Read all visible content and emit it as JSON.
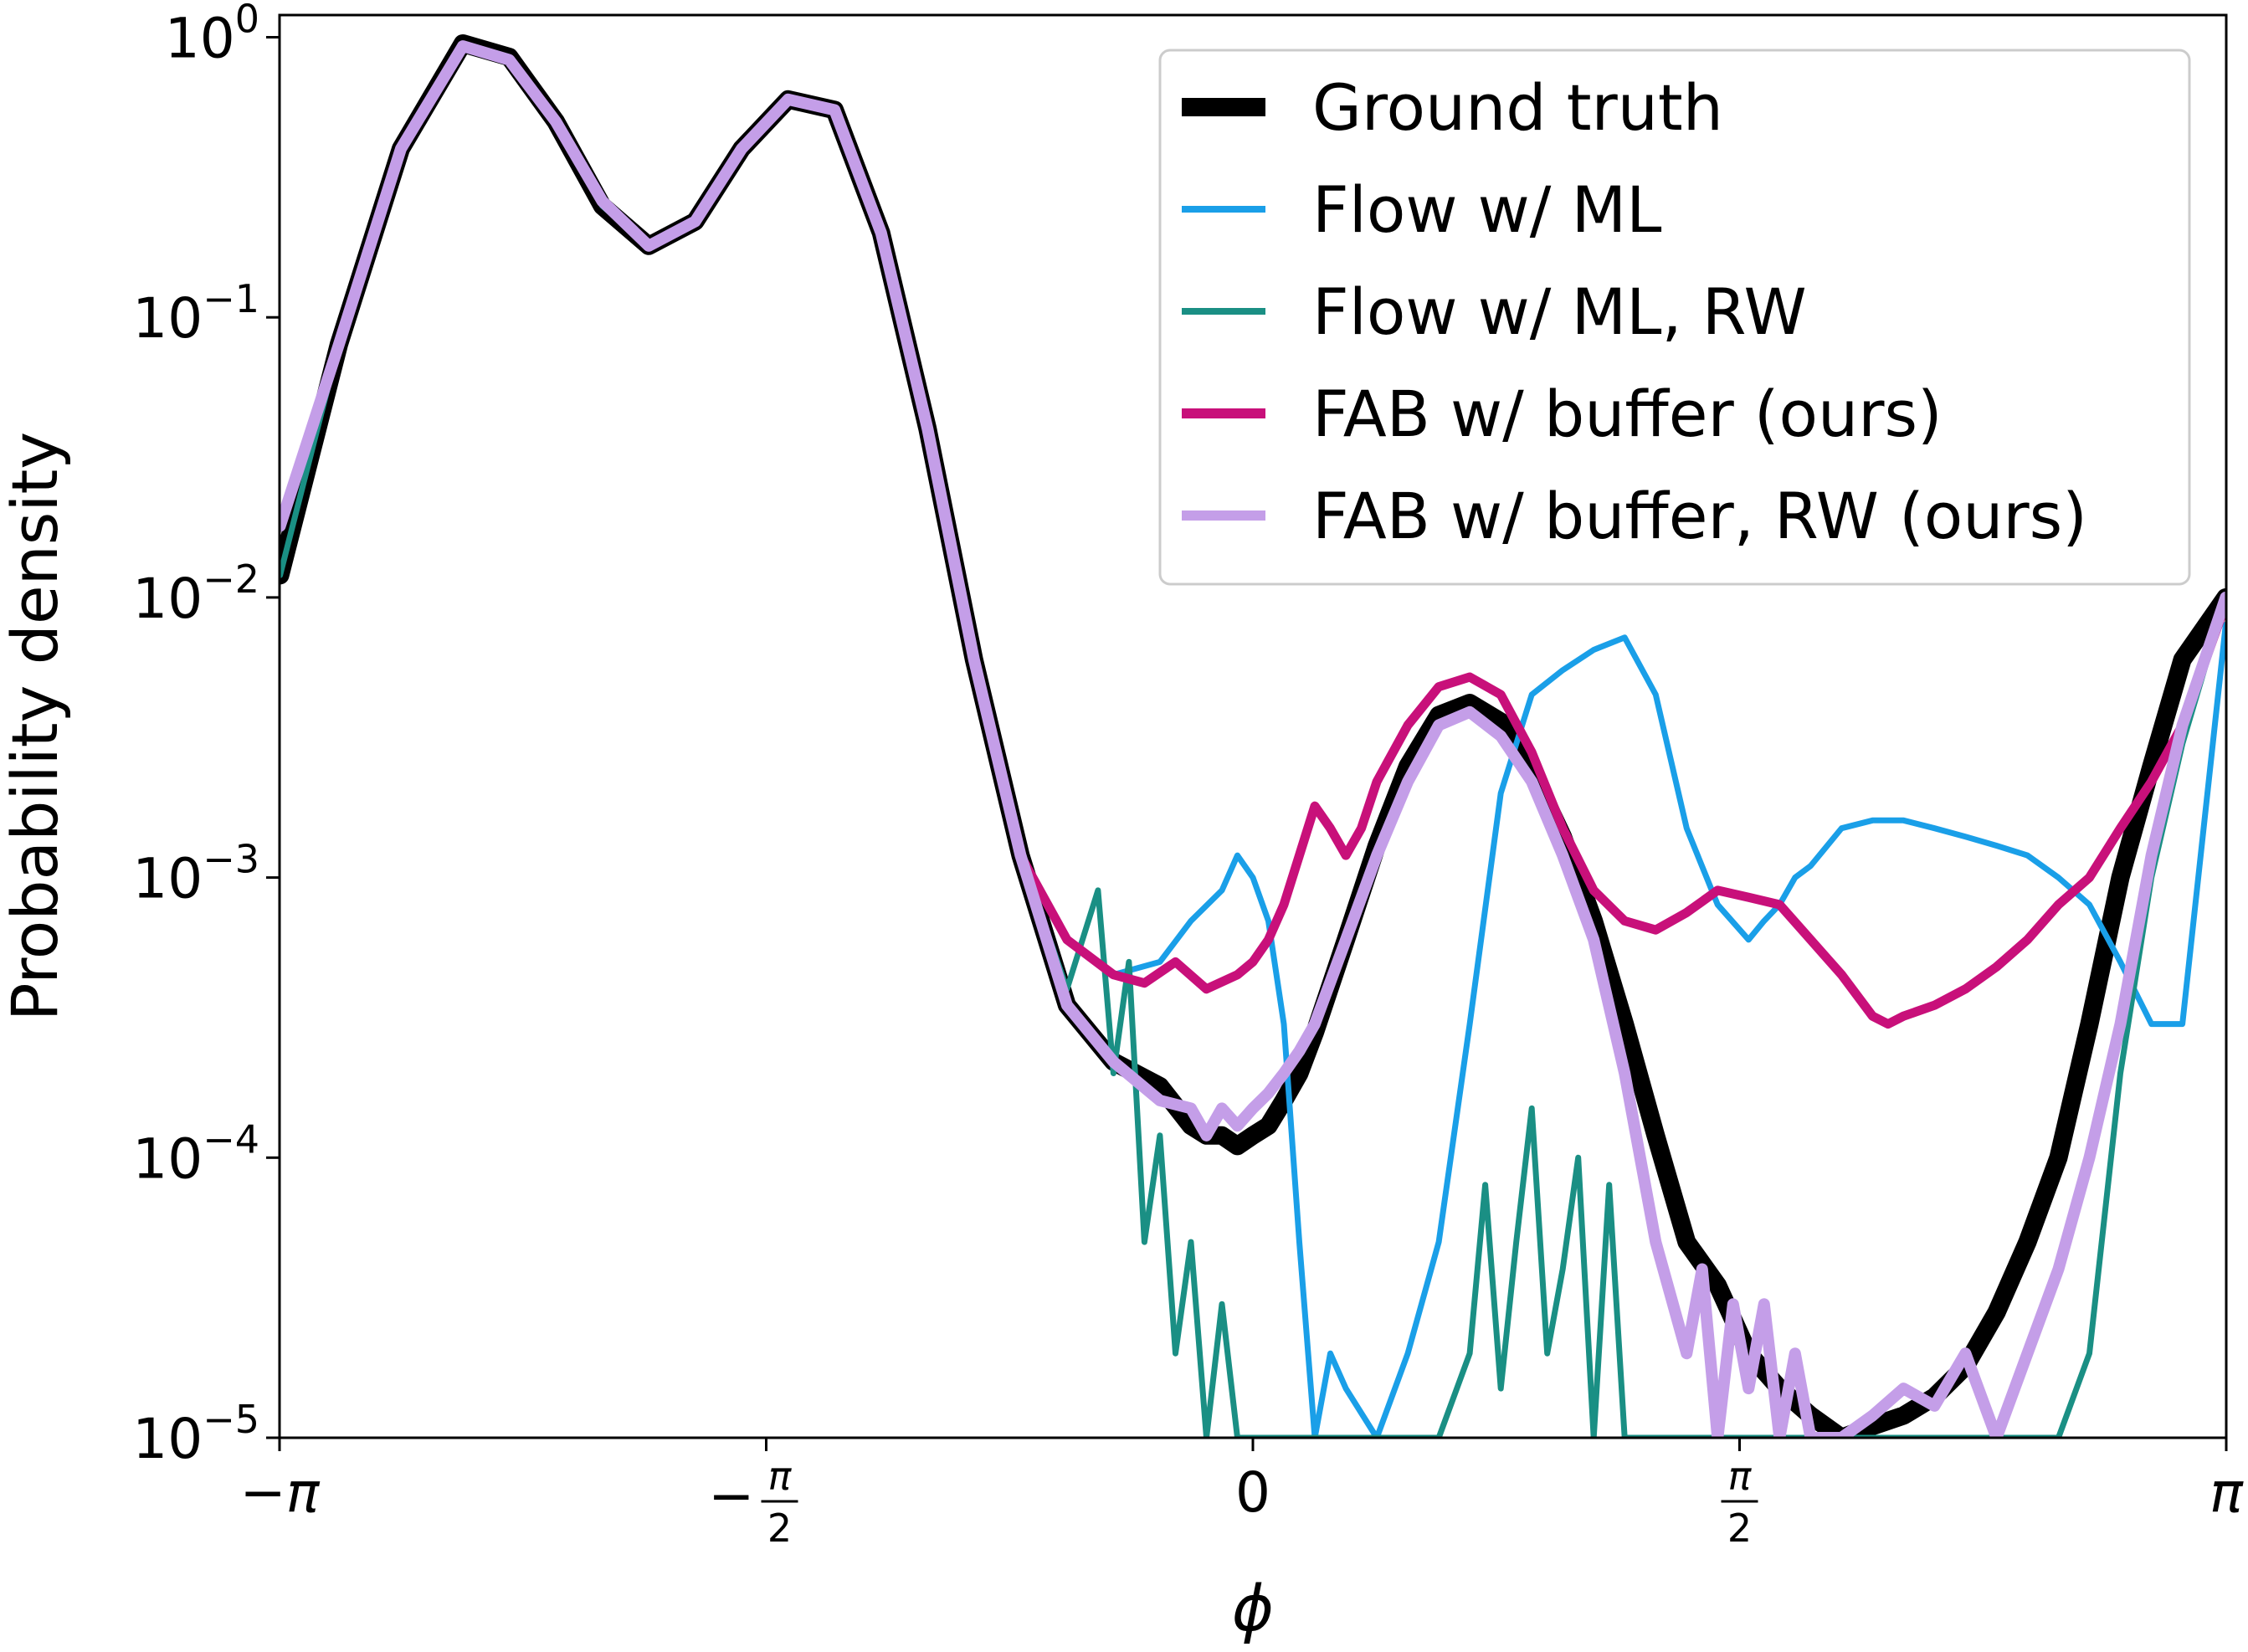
{
  "chart_data": {
    "type": "line",
    "title": "",
    "xlabel": "ϕ",
    "ylabel": "Probability density",
    "yscale": "log",
    "xlim": [
      -3.14159,
      3.14159
    ],
    "ylim": [
      1e-05,
      1.2
    ],
    "x_ticks": [
      {
        "value": -3.14159,
        "label": "−π"
      },
      {
        "value": -1.5708,
        "label": "−π/2"
      },
      {
        "value": 0,
        "label": "0"
      },
      {
        "value": 1.5708,
        "label": "π/2"
      },
      {
        "value": 3.14159,
        "label": "π"
      }
    ],
    "y_ticks": [
      {
        "value": 1,
        "label": "10^0"
      },
      {
        "value": 0.1,
        "label": "10^−1"
      },
      {
        "value": 0.01,
        "label": "10^−2"
      },
      {
        "value": 0.001,
        "label": "10^−3"
      },
      {
        "value": 0.0001,
        "label": "10^−4"
      },
      {
        "value": 1e-05,
        "label": "10^−5"
      }
    ],
    "grid": false,
    "legend_position": "top-right",
    "series": [
      {
        "name": "Ground truth",
        "color": "#000000",
        "width": 22,
        "x": [
          -3.14,
          -2.95,
          -2.75,
          -2.55,
          -2.4,
          -2.25,
          -2.1,
          -1.95,
          -1.8,
          -1.65,
          -1.5,
          -1.35,
          -1.2,
          -1.05,
          -0.9,
          -0.75,
          -0.6,
          -0.45,
          -0.3,
          -0.2,
          -0.15,
          -0.1,
          -0.05,
          0,
          0.05,
          0.1,
          0.15,
          0.2,
          0.3,
          0.4,
          0.5,
          0.6,
          0.7,
          0.8,
          0.9,
          1.0,
          1.1,
          1.2,
          1.3,
          1.4,
          1.5,
          1.6,
          1.7,
          1.8,
          1.9,
          2.0,
          2.1,
          2.2,
          2.3,
          2.4,
          2.5,
          2.6,
          2.7,
          2.8,
          2.9,
          3.0,
          3.14
        ],
        "y": [
          0.012,
          0.08,
          0.4,
          0.95,
          0.85,
          0.5,
          0.25,
          0.18,
          0.22,
          0.4,
          0.6,
          0.55,
          0.2,
          0.04,
          0.006,
          0.0012,
          0.00035,
          0.00022,
          0.00018,
          0.00013,
          0.00012,
          0.00012,
          0.00011,
          0.00012,
          0.00013,
          0.00016,
          0.0002,
          0.00028,
          0.0006,
          0.0013,
          0.0025,
          0.0038,
          0.0042,
          0.0036,
          0.0024,
          0.0014,
          0.0007,
          0.0003,
          0.00012,
          5e-05,
          3.5e-05,
          2e-05,
          1.5e-05,
          1.2e-05,
          1e-05,
          1.1e-05,
          1.2e-05,
          1.4e-05,
          1.8e-05,
          2.8e-05,
          5e-05,
          0.0001,
          0.0003,
          0.001,
          0.0025,
          0.006,
          0.01
        ]
      },
      {
        "name": "Flow w/ ML",
        "color": "#1a9fe8",
        "width": 7,
        "x": [
          -3.14,
          -2.95,
          -2.75,
          -2.55,
          -2.4,
          -2.25,
          -2.1,
          -1.95,
          -1.8,
          -1.65,
          -1.5,
          -1.35,
          -1.2,
          -1.05,
          -0.9,
          -0.75,
          -0.6,
          -0.45,
          -0.3,
          -0.2,
          -0.1,
          -0.05,
          0,
          0.05,
          0.1,
          0.15,
          0.2,
          0.25,
          0.3,
          0.4,
          0.5,
          0.6,
          0.7,
          0.8,
          0.9,
          1.0,
          1.1,
          1.2,
          1.3,
          1.4,
          1.5,
          1.6,
          1.65,
          1.7,
          1.75,
          1.8,
          1.9,
          2.0,
          2.1,
          2.2,
          2.3,
          2.4,
          2.5,
          2.6,
          2.7,
          2.8,
          2.9,
          3.0,
          3.14
        ],
        "y": [
          0.018,
          0.08,
          0.4,
          0.93,
          0.83,
          0.5,
          0.26,
          0.18,
          0.22,
          0.4,
          0.6,
          0.55,
          0.2,
          0.04,
          0.006,
          0.0012,
          0.0006,
          0.00045,
          0.0005,
          0.0007,
          0.0009,
          0.0012,
          0.001,
          0.0007,
          0.0003,
          5e-05,
          1e-05,
          2e-05,
          1.5e-05,
          1e-05,
          2e-05,
          5e-05,
          0.0003,
          0.002,
          0.0045,
          0.0055,
          0.0065,
          0.0072,
          0.0045,
          0.0015,
          0.0008,
          0.0006,
          0.0007,
          0.0008,
          0.001,
          0.0011,
          0.0015,
          0.0016,
          0.0016,
          0.0015,
          0.0014,
          0.0013,
          0.0012,
          0.001,
          0.0008,
          0.0005,
          0.0003,
          0.0003,
          0.008
        ]
      },
      {
        "name": "Flow w/ ML, RW",
        "color": "#1a8f84",
        "width": 7,
        "x": [
          -3.14,
          -2.95,
          -2.75,
          -2.55,
          -2.4,
          -2.25,
          -2.1,
          -1.95,
          -1.8,
          -1.65,
          -1.5,
          -1.35,
          -1.2,
          -1.05,
          -0.9,
          -0.75,
          -0.6,
          -0.5,
          -0.45,
          -0.4,
          -0.35,
          -0.3,
          -0.25,
          -0.2,
          -0.15,
          -0.1,
          -0.05,
          0,
          0.05,
          0.1,
          0.2,
          0.3,
          0.4,
          0.5,
          0.6,
          0.7,
          0.75,
          0.8,
          0.85,
          0.9,
          0.95,
          1.0,
          1.05,
          1.1,
          1.15,
          1.2,
          1.3,
          1.4,
          1.5,
          1.6,
          1.7,
          1.8,
          1.9,
          2.0,
          2.1,
          2.2,
          2.3,
          2.4,
          2.5,
          2.6,
          2.7,
          2.8,
          2.9,
          3.0,
          3.14
        ],
        "y": [
          0.012,
          0.08,
          0.4,
          0.95,
          0.85,
          0.5,
          0.25,
          0.18,
          0.22,
          0.4,
          0.6,
          0.55,
          0.2,
          0.04,
          0.006,
          0.0012,
          0.0004,
          0.0009,
          0.0002,
          0.0005,
          5e-05,
          0.00012,
          2e-05,
          5e-05,
          1e-05,
          3e-05,
          1e-05,
          1e-05,
          1e-05,
          1e-05,
          1e-05,
          1e-05,
          1e-05,
          1e-05,
          1e-05,
          2e-05,
          8e-05,
          1.5e-05,
          5e-05,
          0.00015,
          2e-05,
          4e-05,
          0.0001,
          1e-05,
          8e-05,
          1e-05,
          1e-05,
          1e-05,
          1e-05,
          1e-05,
          1e-05,
          1e-05,
          1e-05,
          1e-05,
          1e-05,
          1e-05,
          1e-05,
          1e-05,
          1e-05,
          1e-05,
          2e-05,
          0.0002,
          0.001,
          0.003,
          0.01
        ]
      },
      {
        "name": "FAB w/ buffer (ours)",
        "color": "#c8107a",
        "width": 11,
        "x": [
          -3.14,
          -2.95,
          -2.75,
          -2.55,
          -2.4,
          -2.25,
          -2.1,
          -1.95,
          -1.8,
          -1.65,
          -1.5,
          -1.35,
          -1.2,
          -1.05,
          -0.9,
          -0.75,
          -0.6,
          -0.45,
          -0.35,
          -0.25,
          -0.15,
          -0.05,
          0,
          0.05,
          0.1,
          0.15,
          0.2,
          0.25,
          0.3,
          0.35,
          0.4,
          0.5,
          0.6,
          0.7,
          0.8,
          0.9,
          1.0,
          1.1,
          1.2,
          1.3,
          1.4,
          1.5,
          1.6,
          1.7,
          1.8,
          1.9,
          2.0,
          2.05,
          2.1,
          2.2,
          2.3,
          2.4,
          2.5,
          2.6,
          2.7,
          2.8,
          2.9,
          3.0,
          3.14
        ],
        "y": [
          0.018,
          0.08,
          0.4,
          0.93,
          0.83,
          0.5,
          0.26,
          0.18,
          0.22,
          0.4,
          0.6,
          0.55,
          0.2,
          0.04,
          0.006,
          0.0012,
          0.0006,
          0.00045,
          0.00042,
          0.0005,
          0.0004,
          0.00045,
          0.0005,
          0.0006,
          0.0008,
          0.0012,
          0.0018,
          0.0015,
          0.0012,
          0.0015,
          0.0022,
          0.0035,
          0.0048,
          0.0052,
          0.0045,
          0.0028,
          0.0015,
          0.0009,
          0.0007,
          0.00065,
          0.00075,
          0.0009,
          0.00085,
          0.0008,
          0.0006,
          0.00045,
          0.00032,
          0.0003,
          0.00032,
          0.00035,
          0.0004,
          0.00048,
          0.0006,
          0.0008,
          0.001,
          0.0015,
          0.0022,
          0.0035,
          0.0095
        ]
      },
      {
        "name": "FAB w/ buffer, RW (ours)",
        "color": "#c49ee8",
        "width": 14,
        "x": [
          -3.14,
          -2.95,
          -2.75,
          -2.55,
          -2.4,
          -2.25,
          -2.1,
          -1.95,
          -1.8,
          -1.65,
          -1.5,
          -1.35,
          -1.2,
          -1.05,
          -0.9,
          -0.75,
          -0.6,
          -0.45,
          -0.3,
          -0.2,
          -0.15,
          -0.1,
          -0.05,
          0,
          0.05,
          0.1,
          0.15,
          0.2,
          0.3,
          0.4,
          0.5,
          0.6,
          0.7,
          0.8,
          0.9,
          1.0,
          1.1,
          1.2,
          1.3,
          1.4,
          1.45,
          1.5,
          1.55,
          1.6,
          1.65,
          1.7,
          1.75,
          1.8,
          1.9,
          2.0,
          2.1,
          2.2,
          2.3,
          2.4,
          2.5,
          2.6,
          2.7,
          2.8,
          2.9,
          3.0,
          3.14
        ],
        "y": [
          0.018,
          0.08,
          0.4,
          0.93,
          0.83,
          0.5,
          0.26,
          0.18,
          0.22,
          0.4,
          0.6,
          0.55,
          0.2,
          0.04,
          0.006,
          0.0012,
          0.00035,
          0.00022,
          0.00016,
          0.00015,
          0.00012,
          0.00015,
          0.00013,
          0.00015,
          0.00017,
          0.0002,
          0.00024,
          0.0003,
          0.0006,
          0.0012,
          0.0022,
          0.0035,
          0.0039,
          0.0032,
          0.0022,
          0.0012,
          0.0006,
          0.0002,
          5e-05,
          2e-05,
          4e-05,
          1e-05,
          3e-05,
          1.5e-05,
          3e-05,
          1e-05,
          2e-05,
          1e-05,
          1e-05,
          1.2e-05,
          1.5e-05,
          1.3e-05,
          2e-05,
          1e-05,
          2e-05,
          4e-05,
          0.0001,
          0.0003,
          0.0012,
          0.0035,
          0.01
        ]
      }
    ]
  }
}
